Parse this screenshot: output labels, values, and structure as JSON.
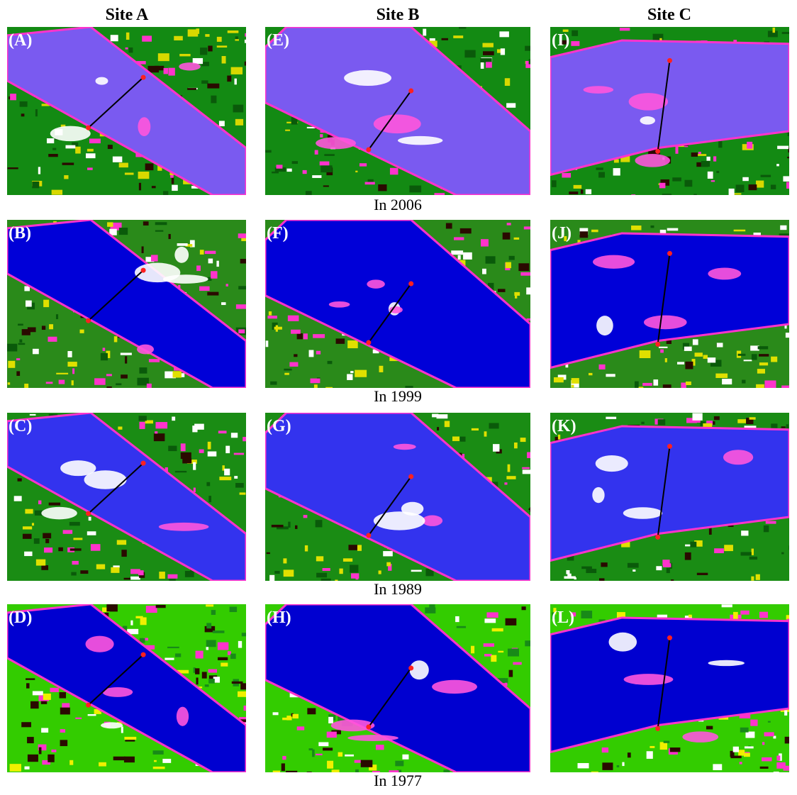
{
  "headers": [
    "Site A",
    "Site B",
    "Site C"
  ],
  "rows": [
    {
      "caption": "In 2006",
      "panels": [
        "(A)",
        "(E)",
        "(I)"
      ]
    },
    {
      "caption": "In 1999",
      "panels": [
        "(B)",
        "(F)",
        "(J)"
      ]
    },
    {
      "caption": "In 1989",
      "panels": [
        "(C)",
        "(G)",
        "(K)"
      ]
    },
    {
      "caption": "In 1977",
      "panels": [
        "(D)",
        "(H)",
        "(L)"
      ]
    }
  ]
}
